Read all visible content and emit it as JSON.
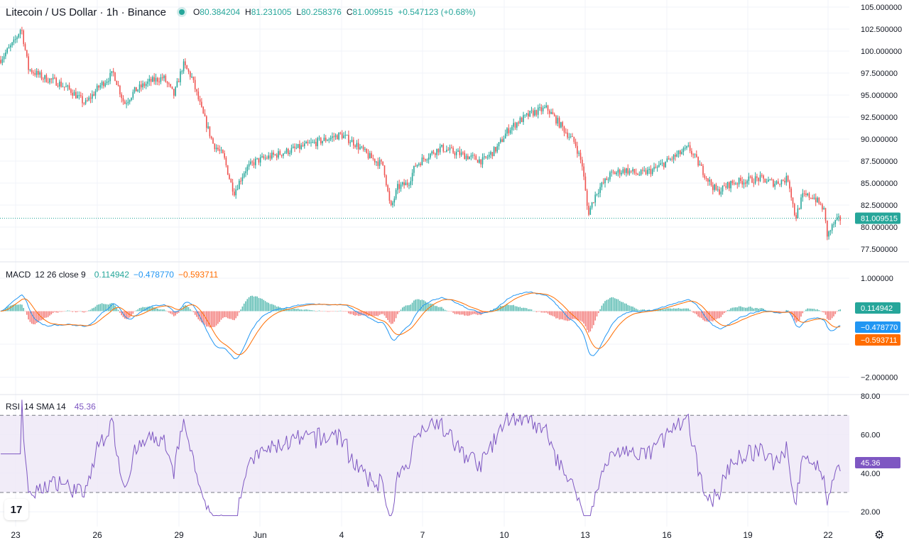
{
  "header": {
    "title": "Litecoin / US Dollar · 1h · Binance",
    "open_label": "O",
    "open": "80.384204",
    "high_label": "H",
    "high": "81.231005",
    "low_label": "L",
    "low": "80.258376",
    "close_label": "C",
    "close": "81.009515",
    "change": "+0.547123 (+0.68%)"
  },
  "macd_legend": {
    "name": "MACD",
    "params": "12 26 close 9",
    "hist": "0.114942",
    "macd": "−0.478770",
    "signal": "−0.593711"
  },
  "rsi_legend": {
    "name": "RSI",
    "params": "14 SMA 14",
    "value": "45.36"
  },
  "colors": {
    "up": "#26a69a",
    "down": "#ef5350",
    "macd": "#2196f3",
    "signal": "#ff6d00",
    "rsi": "#7e57c2",
    "rsi_band": "#ede7f6"
  },
  "icons": {
    "logo": "tradingview-logo-icon",
    "settings": "gear-icon"
  },
  "chart_data": [
    {
      "type": "candlestick",
      "title": "Litecoin / US Dollar · 1h · Binance",
      "x_ticks": [
        "23",
        "26",
        "29",
        "Jun",
        "4",
        "7",
        "10",
        "13",
        "16",
        "19",
        "22"
      ],
      "y_ticks": [
        "105.000000",
        "102.500000",
        "100.000000",
        "97.500000",
        "95.000000",
        "92.500000",
        "90.000000",
        "87.500000",
        "85.000000",
        "82.500000",
        "80.000000",
        "77.500000"
      ],
      "ylim": [
        77.5,
        105
      ],
      "last_price": "81.009515",
      "last_price_value": 81.0095,
      "approx_path": [
        [
          0,
          99
        ],
        [
          20,
          101
        ],
        [
          30,
          102.7
        ],
        [
          40,
          98
        ],
        [
          60,
          97
        ],
        [
          80,
          96.5
        ],
        [
          100,
          95.5
        ],
        [
          120,
          94
        ],
        [
          140,
          96
        ],
        [
          160,
          97.5
        ],
        [
          175,
          94
        ],
        [
          190,
          95.5
        ],
        [
          210,
          96.5
        ],
        [
          230,
          97
        ],
        [
          245,
          95
        ],
        [
          258,
          98.5
        ],
        [
          270,
          97
        ],
        [
          285,
          93
        ],
        [
          300,
          89.5
        ],
        [
          315,
          88
        ],
        [
          325,
          85
        ],
        [
          330,
          84
        ],
        [
          345,
          86.5
        ],
        [
          360,
          87.5
        ],
        [
          380,
          88
        ],
        [
          400,
          88.5
        ],
        [
          420,
          89
        ],
        [
          440,
          89.5
        ],
        [
          460,
          90
        ],
        [
          480,
          90.5
        ],
        [
          500,
          89.5
        ],
        [
          520,
          88
        ],
        [
          540,
          87
        ],
        [
          550,
          82
        ],
        [
          560,
          84.5
        ],
        [
          575,
          85
        ],
        [
          585,
          87
        ],
        [
          600,
          88
        ],
        [
          620,
          89
        ],
        [
          640,
          88.5
        ],
        [
          660,
          88
        ],
        [
          680,
          87.5
        ],
        [
          700,
          89
        ],
        [
          715,
          91
        ],
        [
          730,
          92
        ],
        [
          750,
          93
        ],
        [
          770,
          93.5
        ],
        [
          790,
          91.5
        ],
        [
          810,
          89.5
        ],
        [
          820,
          87
        ],
        [
          828,
          81.5
        ],
        [
          840,
          84
        ],
        [
          860,
          86
        ],
        [
          880,
          86.5
        ],
        [
          900,
          86
        ],
        [
          920,
          86.5
        ],
        [
          940,
          87.5
        ],
        [
          960,
          88.5
        ],
        [
          970,
          89
        ],
        [
          985,
          87
        ],
        [
          1000,
          85
        ],
        [
          1010,
          84
        ],
        [
          1030,
          85
        ],
        [
          1050,
          85.3
        ],
        [
          1070,
          85.5
        ],
        [
          1090,
          85
        ],
        [
          1110,
          85.5
        ],
        [
          1120,
          81
        ],
        [
          1130,
          83.5
        ],
        [
          1145,
          83.5
        ],
        [
          1160,
          82
        ],
        [
          1165,
          79
        ],
        [
          1175,
          80.5
        ],
        [
          1185,
          81
        ]
      ]
    },
    {
      "type": "line",
      "title": "MACD 12 26 close 9",
      "y_ticks": [
        "1.000000",
        "−2.000000"
      ],
      "ylim": [
        -2.3,
        1.2
      ],
      "last_values": {
        "histogram": "0.114942",
        "macd": "−0.478770",
        "signal": "−0.593711"
      }
    },
    {
      "type": "line",
      "title": "RSI 14 SMA 14",
      "y_ticks": [
        "80.00",
        "60.00",
        "40.00",
        "20.00"
      ],
      "ylim": [
        15,
        80
      ],
      "bands": [
        30,
        70
      ],
      "last_value": "45.36"
    }
  ]
}
